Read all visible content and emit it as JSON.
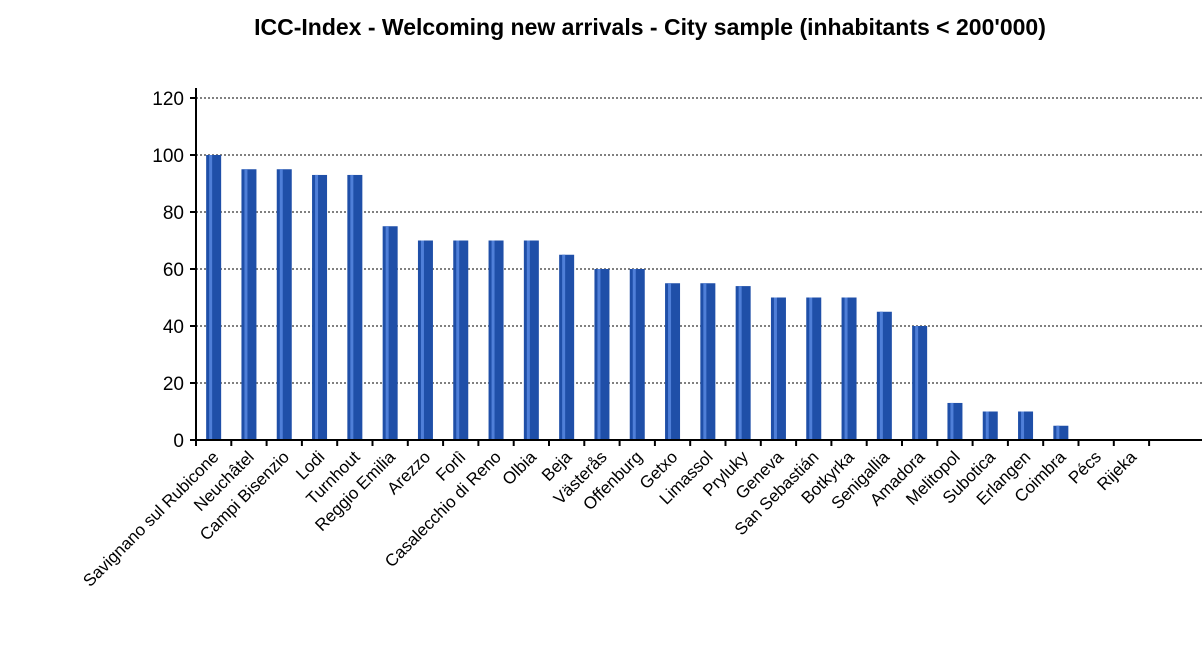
{
  "chart_data": {
    "type": "bar",
    "title": "ICC-Index - Welcoming new arrivals - City sample (inhabitants < 200'000)",
    "xlabel": "",
    "ylabel": "",
    "ylim": [
      0,
      120
    ],
    "yticks": [
      0,
      20,
      40,
      60,
      80,
      100,
      120
    ],
    "grid": true,
    "legend": "none",
    "bar_color": "#1f4fa8",
    "categories": [
      "Savignano sul Rubicone",
      "Neuchâtel",
      "Campi Bisenzio",
      "Lodi",
      "Turnhout",
      "Reggio Emilia",
      "Arezzo",
      "Forlì",
      "Casalecchio di Reno",
      "Olbia",
      "Beja",
      "Västerås",
      "Offenburg",
      "Getxo",
      "Limassol",
      "Pryluky",
      "Geneva",
      "San Sebastián",
      "Botkyrka",
      "Senigallia",
      "Amadora",
      "Melitopol",
      "Subotica",
      "Erlangen",
      "Coimbra",
      "Pécs",
      "Rijeka"
    ],
    "values": [
      100,
      95,
      95,
      93,
      93,
      75,
      70,
      70,
      70,
      70,
      65,
      60,
      60,
      55,
      55,
      54,
      50,
      50,
      50,
      45,
      40,
      13,
      10,
      10,
      5,
      0,
      0
    ]
  }
}
